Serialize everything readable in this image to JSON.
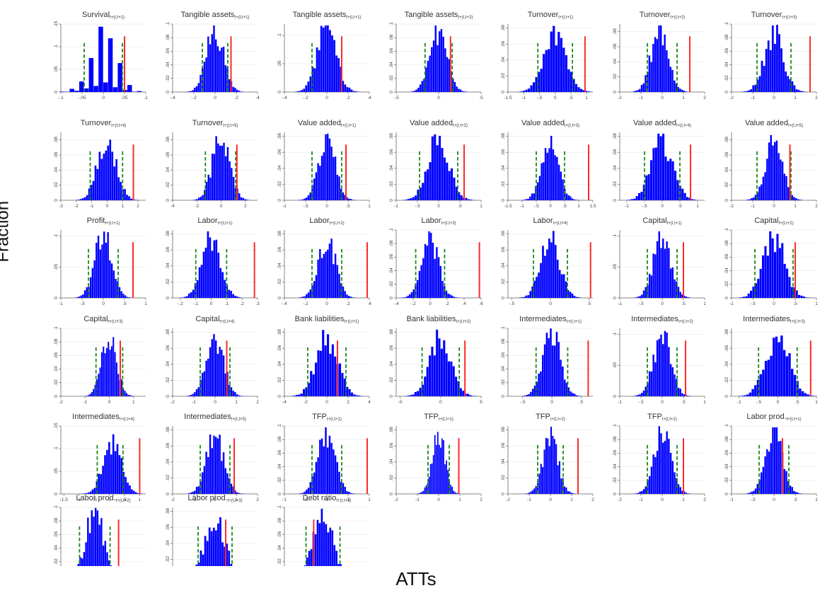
{
  "figure": {
    "ylabel": "Fraction",
    "xlabel": "ATTs",
    "colors": {
      "bars": "#0000ff",
      "ci": "#1a8a1a",
      "att": "#ff2a2a",
      "text": "#333333"
    }
  },
  "chart_data": [
    {
      "type": "bar",
      "title": "Survival",
      "subscript": "t+(t,t+1)",
      "xticks": [
        "-.1",
        "-.05",
        "0",
        ".05",
        ".1"
      ],
      "yticks": [
        "0",
        ".05",
        ".1",
        ".15"
      ],
      "xlim": [
        -0.1,
        0.1
      ],
      "ylim": [
        0,
        0.15
      ],
      "mean": 0,
      "sd": 0.03,
      "peak": 0.13,
      "ci": [
        -0.045,
        0.045
      ],
      "att": 0.05
    },
    {
      "type": "bar",
      "title": "Tangible assets",
      "subscript": "t+(t,t+1)",
      "xticks": [
        "-.4",
        "-.2",
        "0",
        ".2",
        ".4"
      ],
      "yticks": [
        "0",
        ".02",
        ".04",
        ".06",
        ".08",
        ".1"
      ],
      "xlim": [
        -0.4,
        0.4
      ],
      "ylim": [
        0,
        0.1
      ],
      "mean": 0,
      "sd": 0.08,
      "peak": 0.09,
      "ci": [
        -0.12,
        0.12
      ],
      "att": 0.15
    },
    {
      "type": "bar",
      "title": "Tangible assets",
      "subscript": "t+(t,t+1)",
      "xticks": [
        "-.4",
        "-.2",
        "0",
        ".2",
        ".4"
      ],
      "yticks": [
        "0",
        ".05",
        ".1"
      ],
      "xlim": [
        -0.4,
        0.4
      ],
      "ylim": [
        0,
        0.12
      ],
      "mean": 0,
      "sd": 0.09,
      "peak": 0.11,
      "ci": [
        -0.14,
        0.14
      ],
      "att": 0.14
    },
    {
      "type": "bar",
      "title": "Tangible assets",
      "subscript": "t+(t,t+2)",
      "xticks": [
        "-.5",
        "0",
        ".5"
      ],
      "yticks": [
        "0",
        ".02",
        ".04",
        ".06",
        ".08",
        ".1"
      ],
      "xlim": [
        -0.5,
        0.5
      ],
      "ylim": [
        0,
        0.1
      ],
      "mean": 0,
      "sd": 0.1,
      "peak": 0.09,
      "ci": [
        -0.16,
        0.16
      ],
      "att": 0.14
    },
    {
      "type": "bar",
      "title": "Turnover",
      "subscript": "t+(t,t+1)",
      "xticks": [
        "-1.5",
        "-1",
        "-.5",
        "0",
        ".5",
        "1"
      ],
      "yticks": [
        "0",
        ".02",
        ".04",
        ".06",
        ".08"
      ],
      "xlim": [
        -1.5,
        1.2
      ],
      "ylim": [
        0,
        0.085
      ],
      "mean": 0,
      "sd": 0.35,
      "peak": 0.07,
      "ci": [
        -0.55,
        0.55
      ],
      "att": 0.95
    },
    {
      "type": "bar",
      "title": "Turnover",
      "subscript": "t+(t,t+2)",
      "xticks": [
        "-2",
        "-1",
        "0",
        "1",
        "2"
      ],
      "yticks": [
        "0",
        ".02",
        ".04",
        ".06",
        ".08"
      ],
      "xlim": [
        -2,
        2
      ],
      "ylim": [
        0,
        0.09
      ],
      "mean": -0.1,
      "sd": 0.4,
      "peak": 0.085,
      "ci": [
        -0.7,
        0.7
      ],
      "att": 1.3
    },
    {
      "type": "bar",
      "title": "Turnover",
      "subscript": "t+(t,t+3)",
      "xticks": [
        "-2",
        "-1",
        "0",
        "1",
        "2"
      ],
      "yticks": [
        "0",
        ".02",
        ".04",
        ".06",
        ".08",
        ".1"
      ],
      "xlim": [
        -2,
        2
      ],
      "ylim": [
        0,
        0.1
      ],
      "mean": 0,
      "sd": 0.45,
      "peak": 0.085,
      "ci": [
        -0.8,
        0.8
      ],
      "att": 1.7
    },
    {
      "type": "bar",
      "title": "Turnover",
      "subscript": "t+(t,t+4)",
      "xticks": [
        "-3",
        "-2",
        "-1",
        "0",
        "1",
        "2"
      ],
      "yticks": [
        "0",
        ".02",
        ".04",
        ".06",
        ".08"
      ],
      "xlim": [
        -3,
        2.5
      ],
      "ylim": [
        0,
        0.09
      ],
      "mean": 0,
      "sd": 0.6,
      "peak": 0.08,
      "ci": [
        -1.1,
        1.0
      ],
      "att": 1.7
    },
    {
      "type": "bar",
      "title": "Turnover",
      "subscript": "t+(t,t+5)",
      "xticks": [
        "-4",
        "-2",
        "0",
        "2"
      ],
      "yticks": [
        "0",
        ".02",
        ".04",
        ".06",
        ".08"
      ],
      "xlim": [
        -4,
        3
      ],
      "ylim": [
        0,
        0.09
      ],
      "mean": 0,
      "sd": 0.7,
      "peak": 0.085,
      "ci": [
        -1.3,
        1.2
      ],
      "att": 1.3
    },
    {
      "type": "bar",
      "title": "Value added",
      "subscript": "t+(t,t+1)",
      "xticks": [
        "-1",
        "-.5",
        "0",
        ".5",
        "1"
      ],
      "yticks": [
        "0",
        ".02",
        ".04",
        ".06",
        ".08"
      ],
      "xlim": [
        -1,
        1
      ],
      "ylim": [
        0,
        0.085
      ],
      "mean": 0,
      "sd": 0.2,
      "peak": 0.075,
      "ci": [
        -0.35,
        0.35
      ],
      "att": 0.45
    },
    {
      "type": "bar",
      "title": "Value added",
      "subscript": "t+(t,t+2)",
      "xticks": [
        "-1",
        "-.5",
        "0",
        ".5",
        "1"
      ],
      "yticks": [
        "0",
        ".02",
        ".04",
        ".06",
        ".08"
      ],
      "xlim": [
        -1,
        1
      ],
      "ylim": [
        0,
        0.085
      ],
      "mean": 0,
      "sd": 0.25,
      "peak": 0.075,
      "ci": [
        -0.45,
        0.45
      ],
      "att": 0.6
    },
    {
      "type": "bar",
      "title": "Value added",
      "subscript": "t+(t,t+3)",
      "xticks": [
        "-1.5",
        "-1",
        "-.5",
        "0",
        ".5",
        "1",
        "1.5"
      ],
      "yticks": [
        "0",
        ".02",
        ".04",
        ".06",
        ".08"
      ],
      "xlim": [
        -1.5,
        1.5
      ],
      "ylim": [
        0,
        0.085
      ],
      "mean": 0,
      "sd": 0.3,
      "peak": 0.07,
      "ci": [
        -0.5,
        0.5
      ],
      "att": 1.35
    },
    {
      "type": "bar",
      "title": "Value added",
      "subscript": "t+(t,t+4)",
      "xticks": [
        "-1",
        "-.5",
        "0",
        ".5",
        "1"
      ],
      "yticks": [
        "0",
        ".02",
        ".04",
        ".06",
        ".08"
      ],
      "xlim": [
        -1.2,
        1.2
      ],
      "ylim": [
        0,
        0.085
      ],
      "mean": 0,
      "sd": 0.3,
      "peak": 0.075,
      "ci": [
        -0.5,
        0.5
      ],
      "att": 0.8
    },
    {
      "type": "bar",
      "title": "Value added",
      "subscript": "t+(t,t+5)",
      "xticks": [
        "-2",
        "-1",
        "0",
        "1",
        "2"
      ],
      "yticks": [
        "0",
        ".02",
        ".04",
        ".06",
        ".08"
      ],
      "xlim": [
        -2,
        2
      ],
      "ylim": [
        0,
        0.09
      ],
      "mean": 0,
      "sd": 0.4,
      "peak": 0.08,
      "ci": [
        -0.8,
        0.8
      ],
      "att": 0.75
    },
    {
      "type": "bar",
      "title": "Profit",
      "subscript": "t+(t,t+1)",
      "xticks": [
        "-1",
        "-.5",
        "0",
        ".5",
        "1"
      ],
      "yticks": [
        "0",
        ".05",
        ".1"
      ],
      "xlim": [
        -1,
        1
      ],
      "ylim": [
        0,
        0.11
      ],
      "mean": 0,
      "sd": 0.2,
      "peak": 0.1,
      "ci": [
        -0.35,
        0.35
      ],
      "att": 0.7
    },
    {
      "type": "bar",
      "title": "Labor",
      "subscript": "t+(t,t+1)",
      "xticks": [
        "-.2",
        "-.1",
        "0",
        ".1",
        ".2",
        ".3"
      ],
      "yticks": [
        "0",
        ".02",
        ".04",
        ".06",
        ".08"
      ],
      "xlim": [
        -0.25,
        0.3
      ],
      "ylim": [
        0,
        0.085
      ],
      "mean": 0,
      "sd": 0.06,
      "peak": 0.075,
      "ci": [
        -0.1,
        0.1
      ],
      "att": 0.28
    },
    {
      "type": "bar",
      "title": "Labor",
      "subscript": "t+(t,t+2)",
      "xticks": [
        "-.4",
        "-.2",
        "0",
        ".2",
        ".4"
      ],
      "yticks": [
        "0",
        ".02",
        ".04",
        ".06",
        ".08"
      ],
      "xlim": [
        -0.4,
        0.4
      ],
      "ylim": [
        0,
        0.085
      ],
      "mean": 0,
      "sd": 0.08,
      "peak": 0.075,
      "ci": [
        -0.14,
        0.14
      ],
      "att": 0.38
    },
    {
      "type": "bar",
      "title": "Labor",
      "subscript": "t+(t,t+3)",
      "xticks": [
        "-.4",
        "-.2",
        "0",
        ".2",
        ".4",
        ".6"
      ],
      "yticks": [
        "0",
        ".02",
        ".04",
        ".06",
        ".08",
        ".1"
      ],
      "xlim": [
        -0.4,
        0.6
      ],
      "ylim": [
        0,
        0.1
      ],
      "mean": 0,
      "sd": 0.1,
      "peak": 0.085,
      "ci": [
        -0.17,
        0.17
      ],
      "att": 0.58
    },
    {
      "type": "bar",
      "title": "Labor",
      "subscript": "t+(t,t+4)",
      "xticks": [
        "-.5",
        "0",
        ".5"
      ],
      "yticks": [
        "0",
        ".02",
        ".04",
        ".06",
        ".08"
      ],
      "xlim": [
        -0.55,
        0.55
      ],
      "ylim": [
        0,
        0.085
      ],
      "mean": 0,
      "sd": 0.12,
      "peak": 0.075,
      "ci": [
        -0.22,
        0.22
      ],
      "att": 0.52
    },
    {
      "type": "bar",
      "title": "Capital",
      "subscript": "t+(t,t+1)",
      "xticks": [
        "-1",
        "-.5",
        "0",
        ".5",
        "1"
      ],
      "yticks": [
        "0",
        ".05",
        ".1"
      ],
      "xlim": [
        -1,
        1
      ],
      "ylim": [
        0,
        0.11
      ],
      "mean": 0,
      "sd": 0.2,
      "peak": 0.1,
      "ci": [
        -0.35,
        0.35
      ],
      "att": 0.5
    },
    {
      "type": "bar",
      "title": "Capital",
      "subscript": "t+(t,t+2)",
      "xticks": [
        "-1",
        "-.5",
        "0",
        ".5",
        "1"
      ],
      "yticks": [
        "0",
        ".02",
        ".04",
        ".06",
        ".08",
        ".1"
      ],
      "xlim": [
        -1,
        1
      ],
      "ylim": [
        0,
        0.1
      ],
      "mean": 0,
      "sd": 0.25,
      "peak": 0.09,
      "ci": [
        -0.45,
        0.45
      ],
      "att": 0.5
    },
    {
      "type": "bar",
      "title": "Capital",
      "subscript": "t+(t,t+3)",
      "xticks": [
        "-2",
        "-1",
        "0",
        "1"
      ],
      "yticks": [
        "0",
        ".02",
        ".04",
        ".06",
        ".08",
        ".1"
      ],
      "xlim": [
        -2,
        1.5
      ],
      "ylim": [
        0,
        0.1
      ],
      "mean": 0,
      "sd": 0.3,
      "peak": 0.09,
      "ci": [
        -0.55,
        0.55
      ],
      "att": 0.45
    },
    {
      "type": "bar",
      "title": "Capital",
      "subscript": "t+(t,t+4)",
      "xticks": [
        "-2",
        "-1",
        "0",
        "1",
        "2"
      ],
      "yticks": [
        "0",
        ".02",
        ".04",
        ".06",
        ".08"
      ],
      "xlim": [
        -2,
        2
      ],
      "ylim": [
        0,
        0.085
      ],
      "mean": 0,
      "sd": 0.4,
      "peak": 0.075,
      "ci": [
        -0.7,
        0.7
      ],
      "att": 0.55
    },
    {
      "type": "bar",
      "title": "Bank liabilities",
      "subscript": "t+(t,t+1)",
      "xticks": [
        "-4",
        "-2",
        "0",
        "2",
        "4"
      ],
      "yticks": [
        "0",
        ".02",
        ".04",
        ".06",
        ".08"
      ],
      "xlim": [
        -4,
        4
      ],
      "ylim": [
        0,
        0.085
      ],
      "mean": 0,
      "sd": 1.0,
      "peak": 0.075,
      "ci": [
        -1.8,
        1.8
      ],
      "att": 1.0
    },
    {
      "type": "bar",
      "title": "Bank liabilities",
      "subscript": "t+(t,t+2)",
      "xticks": [
        "-5",
        "0",
        "5"
      ],
      "yticks": [
        "0",
        ".02",
        ".04",
        ".06",
        ".08"
      ],
      "xlim": [
        -5.5,
        5
      ],
      "ylim": [
        0,
        0.085
      ],
      "mean": 0,
      "sd": 1.3,
      "peak": 0.075,
      "ci": [
        -2.3,
        2.3
      ],
      "att": 3.0
    },
    {
      "type": "bar",
      "title": "Intermediates",
      "subscript": "t+(t,t+1)",
      "xticks": [
        "-.5",
        "0",
        ".5"
      ],
      "yticks": [
        "0",
        ".02",
        ".04",
        ".06",
        ".08",
        ".1"
      ],
      "xlim": [
        -0.75,
        0.7
      ],
      "ylim": [
        0,
        0.1
      ],
      "mean": 0,
      "sd": 0.15,
      "peak": 0.09,
      "ci": [
        -0.27,
        0.27
      ],
      "att": 0.62
    },
    {
      "type": "bar",
      "title": "Intermediates",
      "subscript": "t+(t,t+2)",
      "xticks": [
        "-1",
        "-.5",
        "0",
        ".5",
        "1"
      ],
      "yticks": [
        "0",
        ".05",
        ".1"
      ],
      "xlim": [
        -1,
        1
      ],
      "ylim": [
        0,
        0.11
      ],
      "mean": 0,
      "sd": 0.2,
      "peak": 0.1,
      "ci": [
        -0.35,
        0.35
      ],
      "att": 0.55
    },
    {
      "type": "bar",
      "title": "Intermediates",
      "subscript": "t+(t,t+3)",
      "xticks": [
        "-1",
        "-.5",
        "0",
        ".5",
        "1"
      ],
      "yticks": [
        "0",
        ".02",
        ".04",
        ".06",
        ".08"
      ],
      "xlim": [
        -1.2,
        1
      ],
      "ylim": [
        0,
        0.085
      ],
      "mean": 0,
      "sd": 0.3,
      "peak": 0.075,
      "ci": [
        -0.5,
        0.5
      ],
      "att": 0.85
    },
    {
      "type": "bar",
      "title": "Intermediates",
      "subscript": "t+(t,t+4)",
      "xticks": [
        "-1.5",
        "-1",
        "-.5",
        "0",
        ".5",
        "1"
      ],
      "yticks": [
        "0",
        ".05",
        ".1",
        ".15"
      ],
      "xlim": [
        -1.6,
        1.2
      ],
      "ylim": [
        0,
        0.15
      ],
      "mean": 0.1,
      "sd": 0.3,
      "peak": 0.11,
      "ci": [
        -0.4,
        0.45
      ],
      "att": 1.0
    },
    {
      "type": "bar",
      "title": "Intermediates",
      "subscript": "t+(t,t+5)",
      "xticks": [
        "-2",
        "-1",
        "0",
        "1",
        "2"
      ],
      "yticks": [
        "0",
        ".02",
        ".04",
        ".06",
        ".08"
      ],
      "xlim": [
        -2,
        2
      ],
      "ylim": [
        0,
        0.085
      ],
      "mean": 0,
      "sd": 0.4,
      "peak": 0.075,
      "ci": [
        -0.7,
        0.7
      ],
      "att": 0.9
    },
    {
      "type": "bar",
      "title": "TFP",
      "subscript": "t+(t,t+1)",
      "xticks": [
        "-1",
        "-.5",
        "0",
        ".5",
        "1"
      ],
      "yticks": [
        "0",
        ".02",
        ".04",
        ".06",
        ".08",
        ".1"
      ],
      "xlim": [
        -1,
        1
      ],
      "ylim": [
        0,
        0.1
      ],
      "mean": 0,
      "sd": 0.2,
      "peak": 0.09,
      "ci": [
        -0.35,
        0.35
      ],
      "att": 0.95
    },
    {
      "type": "bar",
      "title": "TFP",
      "subscript": "t+(t,t+1)",
      "xticks": [
        "-2",
        "-1",
        "0",
        "1",
        "2"
      ],
      "yticks": [
        "0",
        ".02",
        ".04",
        ".06",
        ".08"
      ],
      "xlim": [
        -2,
        2
      ],
      "ylim": [
        0,
        0.085
      ],
      "mean": 0,
      "sd": 0.3,
      "peak": 0.075,
      "ci": [
        -0.5,
        0.5
      ],
      "att": 0.95
    },
    {
      "type": "bar",
      "title": "TFP",
      "subscript": "t+(t,t+2)",
      "xticks": [
        "-2",
        "-1",
        "0",
        "1",
        "2"
      ],
      "yticks": [
        "0",
        ".02",
        ".04",
        ".06",
        ".08"
      ],
      "xlim": [
        -2,
        2
      ],
      "ylim": [
        0,
        0.085
      ],
      "mean": 0,
      "sd": 0.35,
      "peak": 0.075,
      "ci": [
        -0.6,
        0.6
      ],
      "att": 1.3
    },
    {
      "type": "bar",
      "title": "TFP",
      "subscript": "t+(t,t+2)",
      "xticks": [
        "-2",
        "-1",
        "0",
        "1",
        "2"
      ],
      "yticks": [
        "0",
        ".02",
        ".04",
        ".06",
        ".08",
        ".1"
      ],
      "xlim": [
        -2,
        2
      ],
      "ylim": [
        0,
        0.1
      ],
      "mean": 0,
      "sd": 0.4,
      "peak": 0.09,
      "ci": [
        -0.7,
        0.7
      ],
      "att": 1.0
    },
    {
      "type": "bar",
      "title": "Labor prod.",
      "subscript": "t+(t,t+1)",
      "xticks": [
        "-1",
        "-.5",
        "0",
        ".5",
        "1"
      ],
      "yticks": [
        "0",
        ".02",
        ".04",
        ".06",
        ".08",
        ".1"
      ],
      "xlim": [
        -1,
        1
      ],
      "ylim": [
        0,
        0.1
      ],
      "mean": 0,
      "sd": 0.2,
      "peak": 0.095,
      "ci": [
        -0.35,
        0.35
      ],
      "att": 0.2
    },
    {
      "type": "bar",
      "title": "Labor prod.",
      "subscript": "t+(t,t+2)",
      "xticks": [
        "-1",
        "-.5",
        "0",
        ".5",
        "1",
        "1.5"
      ],
      "yticks": [
        "0",
        ".02",
        ".04",
        ".06",
        ".08",
        ".1"
      ],
      "xlim": [
        -1,
        1.5
      ],
      "ylim": [
        0,
        0.1
      ],
      "mean": 0,
      "sd": 0.25,
      "peak": 0.095,
      "ci": [
        -0.45,
        0.45
      ],
      "att": 0.7
    },
    {
      "type": "bar",
      "title": "Labor prod.",
      "subscript": "t+(t,t+3)",
      "xticks": [
        "-2",
        "-1",
        "0",
        "1",
        "2"
      ],
      "yticks": [
        "0",
        ".02",
        ".04",
        ".06",
        ".08"
      ],
      "xlim": [
        -2,
        2
      ],
      "ylim": [
        0,
        0.085
      ],
      "mean": 0,
      "sd": 0.45,
      "peak": 0.075,
      "ci": [
        -0.8,
        0.8
      ],
      "att": 0.5
    },
    {
      "type": "bar",
      "title": "Debt ratio",
      "subscript": "t+(t,t+1)",
      "xticks": [
        "-.2",
        "-.1",
        "0",
        ".1",
        ".2",
        ".3"
      ],
      "yticks": [
        "0",
        ".02",
        ".04",
        ".06",
        ".08",
        ".1"
      ],
      "xlim": [
        -0.25,
        0.3
      ],
      "ylim": [
        0,
        0.1
      ],
      "mean": 0,
      "sd": 0.06,
      "peak": 0.09,
      "ci": [
        -0.11,
        0.11
      ],
      "att": -0.06
    }
  ]
}
